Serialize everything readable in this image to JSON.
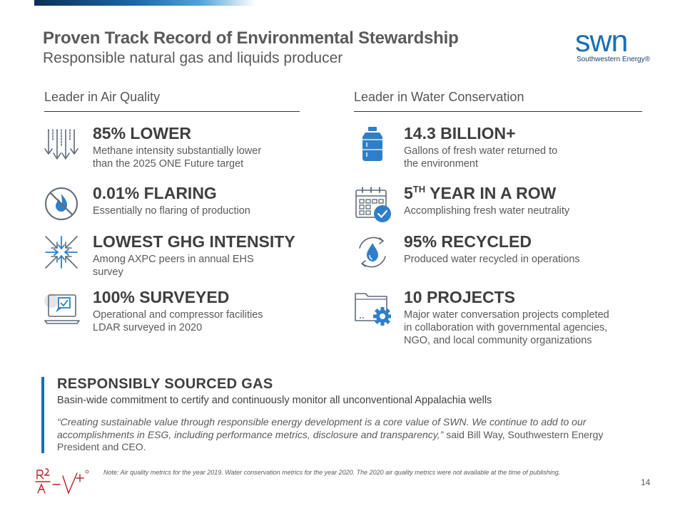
{
  "header": {
    "title": "Proven Track Record of Environmental Stewardship",
    "subtitle": "Responsible natural gas and liquids producer"
  },
  "logo": {
    "mark": "swn",
    "text": "Southwestern Energy®"
  },
  "columns": {
    "air": {
      "heading": "Leader in Air Quality"
    },
    "water": {
      "heading": "Leader in Water Conservation"
    }
  },
  "air_items": [
    {
      "headline": "85% LOWER",
      "desc": [
        "Methane intensity substantially lower",
        "than the 2025 ONE Future target"
      ],
      "icon": "downward-arrows-icon"
    },
    {
      "headline": "0.01% FLARING",
      "desc": [
        "Essentially no flaring of production"
      ],
      "icon": "no-flame-icon"
    },
    {
      "headline": "LOWEST GHG INTENSITY",
      "desc": [
        "Among AXPC peers in annual EHS",
        "survey"
      ],
      "icon": "compress-arrows-icon"
    },
    {
      "headline": "100% SURVEYED",
      "desc": [
        "Operational and compressor facilities",
        "LDAR surveyed in 2020"
      ],
      "icon": "laptop-check-icon"
    }
  ],
  "water_items": [
    {
      "headline": "14.3 BILLION+",
      "desc": [
        "Gallons of fresh water returned to",
        "the environment"
      ],
      "icon": "water-jug-icon"
    },
    {
      "headline_main": "5",
      "headline_sup": "TH",
      "headline_rest": " YEAR IN A ROW",
      "desc": [
        "Accomplishing fresh water neutrality"
      ],
      "icon": "calendar-check-icon"
    },
    {
      "headline": "95% RECYCLED",
      "desc": [
        "Produced water recycled in operations"
      ],
      "icon": "recycle-drop-icon"
    },
    {
      "headline": "10 PROJECTS",
      "desc": [
        "Major water conversation projects completed",
        "in collaboration with governmental agencies,",
        "NGO, and local community organizations"
      ],
      "icon": "folder-gear-icon"
    }
  ],
  "callout": {
    "heading": "RESPONSIBLY SOURCED GAS",
    "subheading": "Basin-wide commitment to certify and continuously monitor all unconventional Appalachia wells",
    "quote_italic": "“Creating sustainable value through responsible energy development is a core value of SWN. We continue to add to our accomplishments in ESG, including performance metrics, disclosure and transparency,”",
    "quote_plain": " said Bill Way, Southwestern Energy President and CEO."
  },
  "footer": {
    "note": "Note: Air quality metrics for the year 2019. Water conservation metrics for the year 2020. The 2020 air quality metrics were not available at the time of publishing.",
    "page_number": "14",
    "rav_mark": "R/A V+"
  },
  "colors": {
    "accent": "#1a6fb6",
    "icon_blue": "#2e7fc8",
    "icon_gray": "#5f6b78"
  }
}
